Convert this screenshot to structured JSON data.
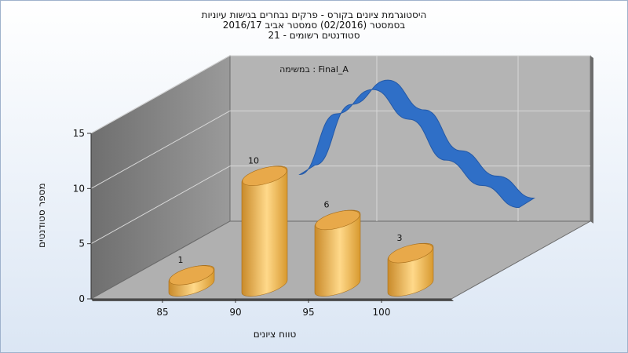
{
  "chart_data": {
    "type": "bar",
    "title_lines": [
      "היסטוגרמת ציונים בקורס - פרקים נבחרים בגישות עיוניות",
      "בסמסטר  (02/2016)  סמסטר אביב 2016/17",
      "סטודנטים רשומים - 21"
    ],
    "caption": "במשימה : Final_A",
    "xlabel": "טווח ציונים",
    "ylabel": "מספר סטודנטים",
    "ylim": [
      0,
      15
    ],
    "y_ticks": [
      "0",
      "5",
      "10",
      "15"
    ],
    "x_ticks": [
      "85",
      "90",
      "95",
      "100"
    ],
    "grid": true,
    "bars": [
      {
        "x": 85,
        "value": 1,
        "label": "1"
      },
      {
        "x": 90,
        "value": 10,
        "label": "10"
      },
      {
        "x": 95,
        "value": 6,
        "label": "6"
      },
      {
        "x": 100,
        "value": 3,
        "label": "3"
      }
    ],
    "curve": [
      {
        "x": 90,
        "value": 8
      },
      {
        "x": 92.5,
        "value": 13.5
      },
      {
        "x": 95,
        "value": 15.7
      },
      {
        "x": 97.5,
        "value": 13
      },
      {
        "x": 100,
        "value": 9.3
      },
      {
        "x": 102.5,
        "value": 7
      },
      {
        "x": 105,
        "value": 5
      }
    ],
    "colors": {
      "bar_light": "#ffd98a",
      "bar_mid": "#e8a94a",
      "bar_dark": "#c98a2a",
      "curve": "#2f6fc7",
      "curve_dark": "#2459a6",
      "back_wall": "#b4b4b4",
      "side_wall": "#8a8a8a",
      "floor": "#b0b0b0",
      "grid": "#d8d8d8"
    }
  }
}
